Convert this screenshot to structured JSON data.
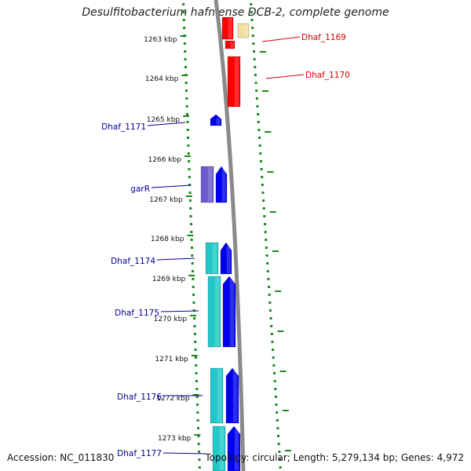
{
  "title": "Desulfitobacterium hafniense DCB-2, complete genome",
  "footer": {
    "accession": "Accession: NC_011830",
    "topology": "Topology: circular; Length: 5,279,134 bp; Genes: 4,972"
  },
  "ticks": [
    "1263 kbp",
    "1264 kbp",
    "1265 kbp",
    "1266 kbp",
    "1267 kbp",
    "1268 kbp",
    "1269 kbp",
    "1270 kbp",
    "1271 kbp",
    "1272 kbp",
    "1273 kbp"
  ],
  "labels": [
    {
      "text": "Dhaf_1169",
      "color": "#d00000"
    },
    {
      "text": "Dhaf_1170",
      "color": "#d00000"
    },
    {
      "text": "Dhaf_1171",
      "color": "#000099"
    },
    {
      "text": "garR",
      "color": "#000099"
    },
    {
      "text": "Dhaf_1174",
      "color": "#000099"
    },
    {
      "text": "Dhaf_1175",
      "color": "#000099"
    },
    {
      "text": "Dhaf_1176",
      "color": "#000099"
    },
    {
      "text": "Dhaf_1177",
      "color": "#000099"
    }
  ],
  "colors": {
    "backbone": "#8a8a8a",
    "dots": "#1a8a1a",
    "red_gene": "#ff0000",
    "blue_gene": "#0000ee",
    "cyan_gene": "#22c8c8",
    "purple_gene": "#6a5acd",
    "yellow_gene": "#f0e0a0"
  }
}
